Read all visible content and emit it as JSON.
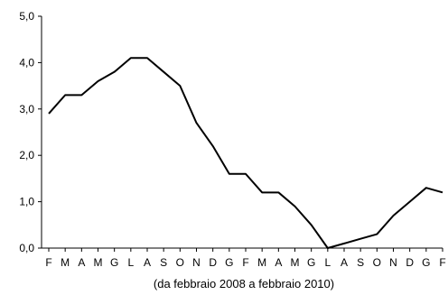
{
  "chart_data": {
    "type": "line",
    "title": "",
    "xlabel": "(da febbraio 2008 a febbraio 2010)",
    "ylabel": "",
    "ylim": [
      0,
      5
    ],
    "y_ticks": [
      "0,0",
      "1,0",
      "2,0",
      "3,0",
      "4,0",
      "5,0"
    ],
    "y_tick_values": [
      0,
      1,
      2,
      3,
      4,
      5
    ],
    "grid": false,
    "categories": [
      "F",
      "M",
      "A",
      "M",
      "G",
      "L",
      "A",
      "S",
      "O",
      "N",
      "D",
      "G",
      "F",
      "M",
      "A",
      "M",
      "G",
      "L",
      "A",
      "S",
      "O",
      "N",
      "D",
      "G",
      "F"
    ],
    "series": [
      {
        "values": [
          2.9,
          3.3,
          3.3,
          3.6,
          3.8,
          4.1,
          4.1,
          3.8,
          3.5,
          2.7,
          2.2,
          1.6,
          1.6,
          1.2,
          1.2,
          0.9,
          0.5,
          0.0,
          0.1,
          0.2,
          0.3,
          0.7,
          1.0,
          1.3,
          1.2
        ],
        "color": "#000000"
      }
    ]
  }
}
